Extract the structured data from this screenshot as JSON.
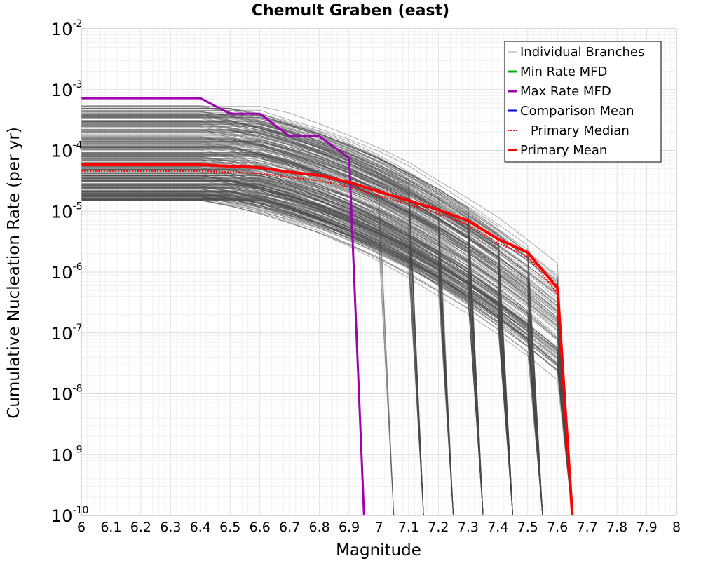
{
  "chart_data": {
    "type": "line",
    "title": "Chemult Graben (east)",
    "xlabel": "Magnitude",
    "ylabel": "Cumulative Nucleation Rate (per yr)",
    "xlim": [
      6,
      8
    ],
    "ylim_exponents": [
      -10,
      -2
    ],
    "yscale": "log",
    "grid": true,
    "x_ticks": [
      "6",
      "6.1",
      "6.2",
      "6.3",
      "6.4",
      "6.5",
      "6.6",
      "6.7",
      "6.8",
      "6.9",
      "7",
      "7.1",
      "7.2",
      "7.3",
      "7.4",
      "7.5",
      "7.6",
      "7.7",
      "7.8",
      "7.9",
      "8"
    ],
    "y_ticks": [
      {
        "base": "10",
        "exp": "-2"
      },
      {
        "base": "10",
        "exp": "-3"
      },
      {
        "base": "10",
        "exp": "-4"
      },
      {
        "base": "10",
        "exp": "-5"
      },
      {
        "base": "10",
        "exp": "-6"
      },
      {
        "base": "10",
        "exp": "-7"
      },
      {
        "base": "10",
        "exp": "-8"
      },
      {
        "base": "10",
        "exp": "-9"
      },
      {
        "base": "10",
        "exp": "-10"
      }
    ],
    "legend": {
      "position": "top-right",
      "entries": [
        {
          "label": "Individual Branches",
          "color": "#a0a0a0",
          "style": "thin"
        },
        {
          "label": "Min Rate MFD",
          "color": "#00b000",
          "style": "solid"
        },
        {
          "label": "Max Rate MFD",
          "color": "#a000b0",
          "style": "solid"
        },
        {
          "label": "Comparison Mean",
          "color": "#0000e0",
          "style": "solid"
        },
        {
          "label": "Primary Median",
          "color": "#ff0000",
          "style": "dotted"
        },
        {
          "label": "Primary Mean",
          "color": "#ff0000",
          "style": "thick"
        }
      ]
    },
    "branches": {
      "count": 300,
      "color": "#4a4a4a",
      "rate_range_at_M6": [
        1.5e-05,
        0.00055
      ],
      "cutoff_magnitudes": [
        7.05,
        7.15,
        7.25,
        7.35,
        7.45,
        7.55,
        7.65
      ]
    },
    "series": [
      {
        "name": "Max Rate MFD",
        "color": "#a000b0",
        "x": [
          6.0,
          6.4,
          6.5,
          6.6,
          6.7,
          6.8,
          6.9,
          6.95
        ],
        "y": [
          0.00072,
          0.00072,
          0.0004,
          0.0004,
          0.00017,
          0.00017,
          7.5e-05,
          1e-10
        ]
      },
      {
        "name": "Primary Mean",
        "color": "#ff0000",
        "x": [
          6.0,
          6.4,
          6.6,
          6.7,
          6.8,
          6.9,
          7.0,
          7.1,
          7.2,
          7.3,
          7.4,
          7.5,
          7.6,
          7.65
        ],
        "y": [
          5.8e-05,
          5.8e-05,
          5.2e-05,
          4.4e-05,
          3.9e-05,
          3e-05,
          2.1e-05,
          1.5e-05,
          1.05e-05,
          7e-06,
          3.5e-06,
          2.1e-06,
          5.5e-07,
          1e-10
        ]
      },
      {
        "name": "Primary Median",
        "color": "#ff0000",
        "x": [
          6.0,
          6.4,
          6.6,
          6.7,
          6.8,
          6.9,
          7.0,
          7.1,
          7.2,
          7.3,
          7.4,
          7.5,
          7.6,
          7.65
        ],
        "y": [
          4.6e-05,
          4.6e-05,
          4.2e-05,
          3.6e-05,
          3.2e-05,
          2.5e-05,
          1.8e-05,
          1.3e-05,
          9e-06,
          6e-06,
          3e-06,
          1.8e-06,
          4.5e-07,
          1e-10
        ]
      }
    ]
  }
}
